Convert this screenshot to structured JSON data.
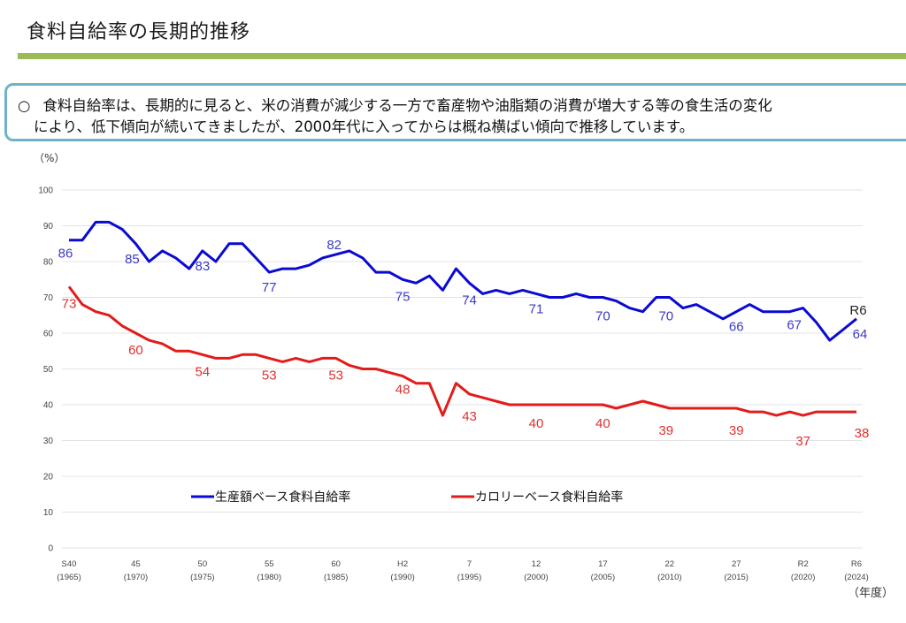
{
  "header": {
    "title": "食料自給率の長期的推移"
  },
  "summary": {
    "bullet": "○",
    "line1": "食料自給率は、長期的に見ると、米の消費が減少する一方で畜産物や油脂類の消費が増大する等の食生活の変化",
    "line2": "により、低下傾向が続いてきましたが、2000年代に入ってからは概ね横ばい傾向で推移しています。"
  },
  "chart_data": {
    "type": "line",
    "title": "",
    "ylabel": "（%）",
    "xlabel": "（年度）",
    "ylim": [
      0,
      100
    ],
    "yticks": [
      0,
      10,
      20,
      30,
      40,
      50,
      60,
      70,
      80,
      90,
      100
    ],
    "grid": true,
    "legend_position": "bottom-center",
    "x": [
      1965,
      1966,
      1967,
      1968,
      1969,
      1970,
      1971,
      1972,
      1973,
      1974,
      1975,
      1976,
      1977,
      1978,
      1979,
      1980,
      1981,
      1982,
      1983,
      1984,
      1985,
      1986,
      1987,
      1988,
      1989,
      1990,
      1991,
      1992,
      1993,
      1994,
      1995,
      1996,
      1997,
      1998,
      1999,
      2000,
      2001,
      2002,
      2003,
      2004,
      2005,
      2006,
      2007,
      2008,
      2009,
      2010,
      2011,
      2012,
      2013,
      2014,
      2015,
      2016,
      2017,
      2018,
      2019,
      2020,
      2021,
      2022,
      2023,
      2024
    ],
    "xticks": [
      {
        "year": 1965,
        "era": "S40",
        "western": "(1965)"
      },
      {
        "year": 1970,
        "era": "45",
        "western": "(1970)"
      },
      {
        "year": 1975,
        "era": "50",
        "western": "(1975)"
      },
      {
        "year": 1980,
        "era": "55",
        "western": "(1980)"
      },
      {
        "year": 1985,
        "era": "60",
        "western": "(1985)"
      },
      {
        "year": 1990,
        "era": "H2",
        "western": "(1990)"
      },
      {
        "year": 1995,
        "era": "7",
        "western": "(1995)"
      },
      {
        "year": 2000,
        "era": "12",
        "western": "(2000)"
      },
      {
        "year": 2005,
        "era": "17",
        "western": "(2005)"
      },
      {
        "year": 2010,
        "era": "22",
        "western": "(2010)"
      },
      {
        "year": 2015,
        "era": "27",
        "western": "(2015)"
      },
      {
        "year": 2020,
        "era": "R2",
        "western": "(2020)"
      },
      {
        "year": 2024,
        "era": "R6",
        "western": "(2024)"
      }
    ],
    "series": [
      {
        "name": "生産額ベース食料自給率",
        "color": "#0a0ad2",
        "label_color": "#3a3ac8",
        "values": [
          86,
          86,
          91,
          91,
          89,
          85,
          80,
          83,
          81,
          78,
          83,
          80,
          85,
          85,
          81,
          77,
          78,
          78,
          79,
          81,
          82,
          83,
          81,
          77,
          77,
          75,
          74,
          76,
          72,
          78,
          74,
          71,
          72,
          71,
          72,
          71,
          70,
          70,
          71,
          70,
          70,
          69,
          67,
          66,
          70,
          70,
          67,
          68,
          66,
          64,
          66,
          68,
          66,
          66,
          66,
          67,
          63,
          58,
          61,
          64
        ],
        "labels": [
          {
            "year": 1965,
            "text": "86"
          },
          {
            "year": 1970,
            "text": "85"
          },
          {
            "year": 1975,
            "text": "83"
          },
          {
            "year": 1980,
            "text": "77"
          },
          {
            "year": 1985,
            "text": "82"
          },
          {
            "year": 1990,
            "text": "75"
          },
          {
            "year": 1995,
            "text": "74"
          },
          {
            "year": 2000,
            "text": "71"
          },
          {
            "year": 2005,
            "text": "70"
          },
          {
            "year": 2010,
            "text": "70"
          },
          {
            "year": 2015,
            "text": "66"
          },
          {
            "year": 2020,
            "text": "67"
          },
          {
            "year": 2024,
            "text": "64"
          }
        ]
      },
      {
        "name": "カロリーベース食料自給率",
        "color": "#e21b1b",
        "label_color": "#e03030",
        "values": [
          73,
          68,
          66,
          65,
          62,
          60,
          58,
          57,
          55,
          55,
          54,
          53,
          53,
          54,
          54,
          53,
          52,
          53,
          52,
          53,
          53,
          51,
          50,
          50,
          49,
          48,
          46,
          46,
          37,
          46,
          43,
          42,
          41,
          40,
          40,
          40,
          40,
          40,
          40,
          40,
          40,
          39,
          40,
          41,
          40,
          39,
          39,
          39,
          39,
          39,
          39,
          38,
          38,
          37,
          38,
          37,
          38,
          38,
          38,
          38
        ],
        "labels": [
          {
            "year": 1965,
            "text": "73"
          },
          {
            "year": 1970,
            "text": "60"
          },
          {
            "year": 1975,
            "text": "54"
          },
          {
            "year": 1980,
            "text": "53"
          },
          {
            "year": 1985,
            "text": "53"
          },
          {
            "year": 1990,
            "text": "48"
          },
          {
            "year": 1995,
            "text": "43"
          },
          {
            "year": 2000,
            "text": "40"
          },
          {
            "year": 2005,
            "text": "40"
          },
          {
            "year": 2010,
            "text": "39"
          },
          {
            "year": 2015,
            "text": "39"
          },
          {
            "year": 2020,
            "text": "37"
          },
          {
            "year": 2024,
            "text": "38"
          }
        ]
      }
    ],
    "annotations": [
      {
        "year": 2024,
        "text": "R6"
      }
    ]
  }
}
